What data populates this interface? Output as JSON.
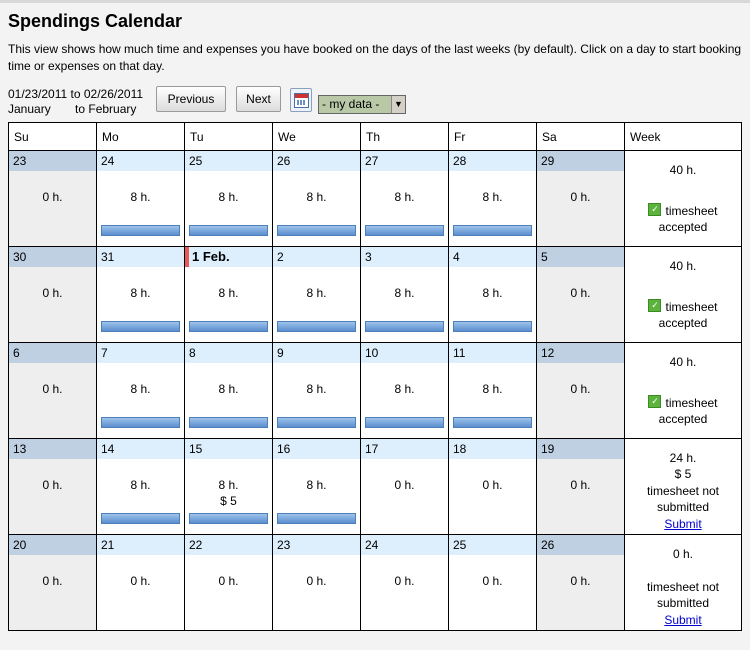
{
  "page": {
    "title": "Spendings Calendar",
    "description": "This view shows how much time and expenses you have booked on the days of the last weeks (by default). Click on a day to start booking time or expenses on that day."
  },
  "toolbar": {
    "range_from": "01/23/2011",
    "range_to_label": "to",
    "range_to": "02/26/2011",
    "month_from": "January",
    "month_to_label": "to",
    "month_to": "February",
    "previous_label": "Previous",
    "next_label": "Next",
    "calendar_icon": "calendar-icon",
    "dataset_select": "- my data -"
  },
  "calendar": {
    "headers": [
      "Su",
      "Mo",
      "Tu",
      "We",
      "Th",
      "Fr",
      "Sa",
      "Week"
    ],
    "weeks": [
      {
        "days": [
          {
            "label": "23",
            "hours": "0 h.",
            "amount": "",
            "bar": false,
            "weekend": true
          },
          {
            "label": "24",
            "hours": "8 h.",
            "amount": "",
            "bar": true,
            "weekend": false
          },
          {
            "label": "25",
            "hours": "8 h.",
            "amount": "",
            "bar": true,
            "weekend": false
          },
          {
            "label": "26",
            "hours": "8 h.",
            "amount": "",
            "bar": true,
            "weekend": false
          },
          {
            "label": "27",
            "hours": "8 h.",
            "amount": "",
            "bar": true,
            "weekend": false
          },
          {
            "label": "28",
            "hours": "8 h.",
            "amount": "",
            "bar": true,
            "weekend": false
          },
          {
            "label": "29",
            "hours": "0 h.",
            "amount": "",
            "bar": false,
            "weekend": true
          }
        ],
        "summary": {
          "hours": "40 h.",
          "amount": "",
          "status": "timesheet accepted",
          "accepted": true,
          "link": ""
        }
      },
      {
        "days": [
          {
            "label": "30",
            "hours": "0 h.",
            "amount": "",
            "bar": false,
            "weekend": true
          },
          {
            "label": "31",
            "hours": "8 h.",
            "amount": "",
            "bar": true,
            "weekend": false
          },
          {
            "label": "1 Feb.",
            "hours": "8 h.",
            "amount": "",
            "bar": true,
            "weekend": false,
            "today": true
          },
          {
            "label": "2",
            "hours": "8 h.",
            "amount": "",
            "bar": true,
            "weekend": false
          },
          {
            "label": "3",
            "hours": "8 h.",
            "amount": "",
            "bar": true,
            "weekend": false
          },
          {
            "label": "4",
            "hours": "8 h.",
            "amount": "",
            "bar": true,
            "weekend": false
          },
          {
            "label": "5",
            "hours": "0 h.",
            "amount": "",
            "bar": false,
            "weekend": true
          }
        ],
        "summary": {
          "hours": "40 h.",
          "amount": "",
          "status": "timesheet accepted",
          "accepted": true,
          "link": ""
        }
      },
      {
        "days": [
          {
            "label": "6",
            "hours": "0 h.",
            "amount": "",
            "bar": false,
            "weekend": true
          },
          {
            "label": "7",
            "hours": "8 h.",
            "amount": "",
            "bar": true,
            "weekend": false
          },
          {
            "label": "8",
            "hours": "8 h.",
            "amount": "",
            "bar": true,
            "weekend": false
          },
          {
            "label": "9",
            "hours": "8 h.",
            "amount": "",
            "bar": true,
            "weekend": false
          },
          {
            "label": "10",
            "hours": "8 h.",
            "amount": "",
            "bar": true,
            "weekend": false
          },
          {
            "label": "11",
            "hours": "8 h.",
            "amount": "",
            "bar": true,
            "weekend": false
          },
          {
            "label": "12",
            "hours": "0 h.",
            "amount": "",
            "bar": false,
            "weekend": true
          }
        ],
        "summary": {
          "hours": "40 h.",
          "amount": "",
          "status": "timesheet accepted",
          "accepted": true,
          "link": ""
        }
      },
      {
        "days": [
          {
            "label": "13",
            "hours": "0 h.",
            "amount": "",
            "bar": false,
            "weekend": true
          },
          {
            "label": "14",
            "hours": "8 h.",
            "amount": "",
            "bar": true,
            "weekend": false
          },
          {
            "label": "15",
            "hours": "8 h.",
            "amount": "$ 5",
            "bar": true,
            "weekend": false
          },
          {
            "label": "16",
            "hours": "8 h.",
            "amount": "",
            "bar": true,
            "weekend": false
          },
          {
            "label": "17",
            "hours": "0 h.",
            "amount": "",
            "bar": false,
            "weekend": false
          },
          {
            "label": "18",
            "hours": "0 h.",
            "amount": "",
            "bar": false,
            "weekend": false
          },
          {
            "label": "19",
            "hours": "0 h.",
            "amount": "",
            "bar": false,
            "weekend": true
          }
        ],
        "summary": {
          "hours": "24 h.",
          "amount": "$ 5",
          "status": "timesheet not submitted",
          "accepted": false,
          "link": "Submit"
        }
      },
      {
        "days": [
          {
            "label": "20",
            "hours": "0 h.",
            "amount": "",
            "bar": false,
            "weekend": true
          },
          {
            "label": "21",
            "hours": "0 h.",
            "amount": "",
            "bar": false,
            "weekend": false
          },
          {
            "label": "22",
            "hours": "0 h.",
            "amount": "",
            "bar": false,
            "weekend": false
          },
          {
            "label": "23",
            "hours": "0 h.",
            "amount": "",
            "bar": false,
            "weekend": false
          },
          {
            "label": "24",
            "hours": "0 h.",
            "amount": "",
            "bar": false,
            "weekend": false
          },
          {
            "label": "25",
            "hours": "0 h.",
            "amount": "",
            "bar": false,
            "weekend": false
          },
          {
            "label": "26",
            "hours": "0 h.",
            "amount": "",
            "bar": false,
            "weekend": true
          }
        ],
        "summary": {
          "hours": "0 h.",
          "amount": "",
          "status": "timesheet not submitted",
          "accepted": false,
          "link": "Submit"
        }
      }
    ]
  }
}
